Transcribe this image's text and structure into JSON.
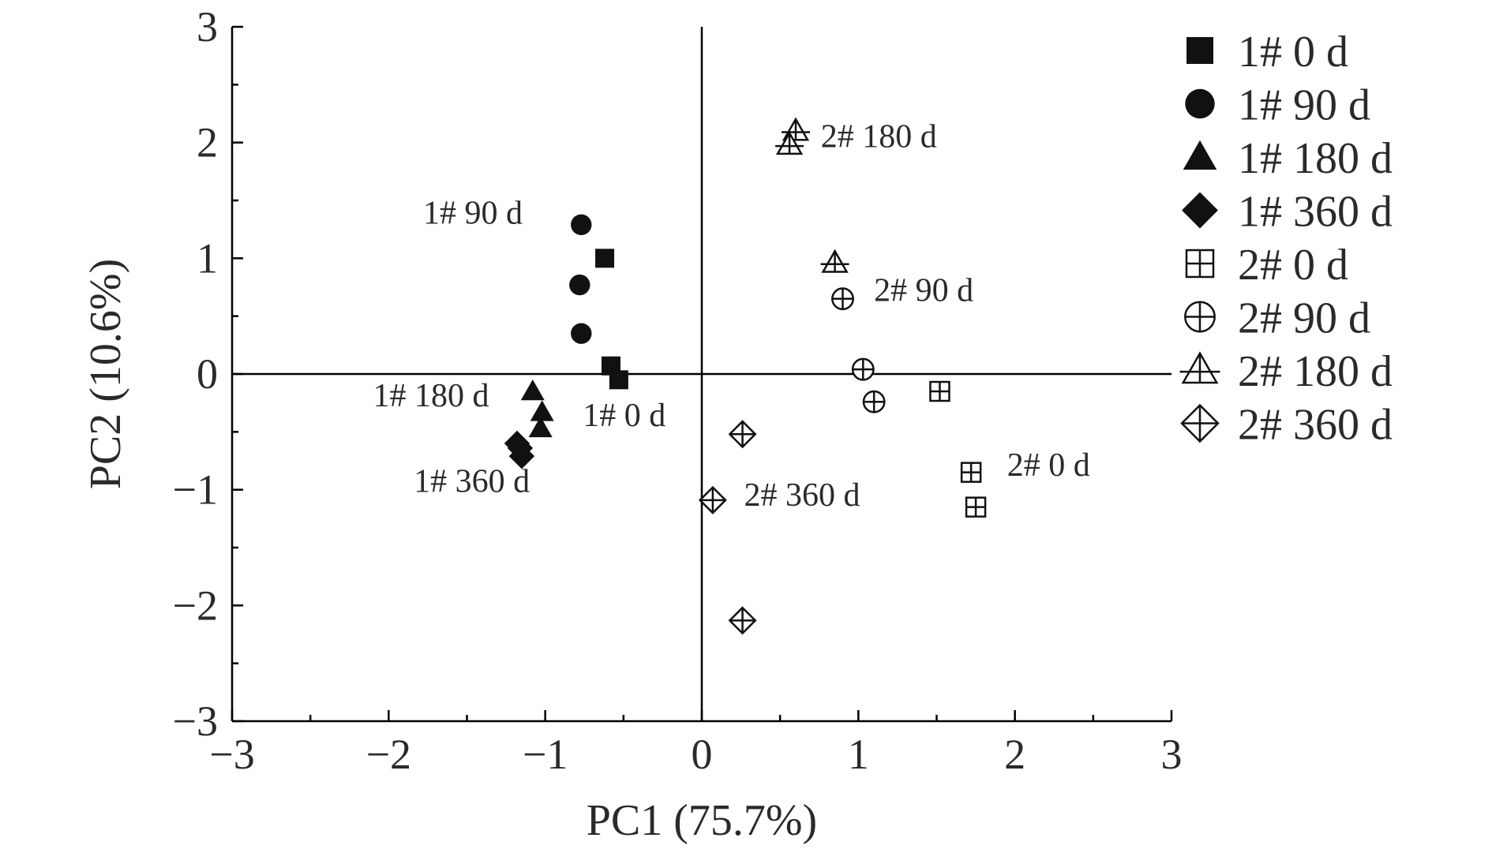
{
  "chart_data": {
    "type": "scatter",
    "title": "",
    "xlabel": "PC1 (75.7%)",
    "ylabel": "PC2 (10.6%)",
    "xlim": [
      -3,
      3
    ],
    "ylim": [
      -3,
      3
    ],
    "xticks": [
      -3,
      -2,
      -1,
      0,
      1,
      2,
      3
    ],
    "yticks": [
      -3,
      -2,
      -1,
      0,
      1,
      2,
      3
    ],
    "xtick_labels": [
      "−3",
      "−2",
      "−1",
      "0",
      "1",
      "2",
      "3"
    ],
    "ytick_labels": [
      "−3",
      "−2",
      "−1",
      "0",
      "1",
      "2",
      "3"
    ],
    "grid": false,
    "zero_lines": true,
    "legend_position": "right",
    "series": [
      {
        "name": "1# 0 d",
        "marker": "square",
        "filled": true,
        "points": [
          [
            -0.62,
            1.0
          ],
          [
            -0.58,
            0.07
          ],
          [
            -0.53,
            -0.05
          ]
        ]
      },
      {
        "name": "1# 90 d",
        "marker": "circle",
        "filled": true,
        "points": [
          [
            -0.77,
            1.29
          ],
          [
            -0.78,
            0.77
          ],
          [
            -0.77,
            0.35
          ]
        ]
      },
      {
        "name": "1# 180 d",
        "marker": "triangle",
        "filled": true,
        "points": [
          [
            -1.08,
            -0.15
          ],
          [
            -1.02,
            -0.33
          ],
          [
            -1.03,
            -0.47
          ]
        ]
      },
      {
        "name": "1# 360 d",
        "marker": "diamond",
        "filled": true,
        "points": [
          [
            -1.18,
            -0.6
          ],
          [
            -1.16,
            -0.64
          ],
          [
            -1.15,
            -0.71
          ]
        ]
      },
      {
        "name": "2# 0 d",
        "marker": "square",
        "filled": false,
        "points": [
          [
            1.52,
            -0.15
          ],
          [
            1.72,
            -0.85
          ],
          [
            1.75,
            -1.15
          ]
        ]
      },
      {
        "name": "2# 90 d",
        "marker": "circle",
        "filled": false,
        "points": [
          [
            0.9,
            0.65
          ],
          [
            1.03,
            0.04
          ],
          [
            1.1,
            -0.24
          ]
        ]
      },
      {
        "name": "2# 180 d",
        "marker": "triangle",
        "filled": false,
        "points": [
          [
            0.6,
            2.1
          ],
          [
            0.56,
            1.98
          ],
          [
            0.85,
            0.96
          ]
        ]
      },
      {
        "name": "2# 360 d",
        "marker": "diamond",
        "filled": false,
        "points": [
          [
            0.26,
            -0.52
          ],
          [
            0.07,
            -1.09
          ],
          [
            0.26,
            -2.13
          ]
        ]
      }
    ],
    "annotations": [
      {
        "text": "1# 90 d",
        "x": -1.78,
        "y": 1.3
      },
      {
        "text": "1# 180 d",
        "x": -2.1,
        "y": -0.28
      },
      {
        "text": "1# 0 d",
        "x": -0.76,
        "y": -0.45
      },
      {
        "text": "1# 360 d",
        "x": -1.84,
        "y": -1.02
      },
      {
        "text": "2# 180 d",
        "x": 0.76,
        "y": 1.96
      },
      {
        "text": "2# 90 d",
        "x": 1.1,
        "y": 0.63
      },
      {
        "text": "2# 0 d",
        "x": 1.95,
        "y": -0.88
      },
      {
        "text": "2# 360 d",
        "x": 0.27,
        "y": -1.14
      }
    ]
  }
}
